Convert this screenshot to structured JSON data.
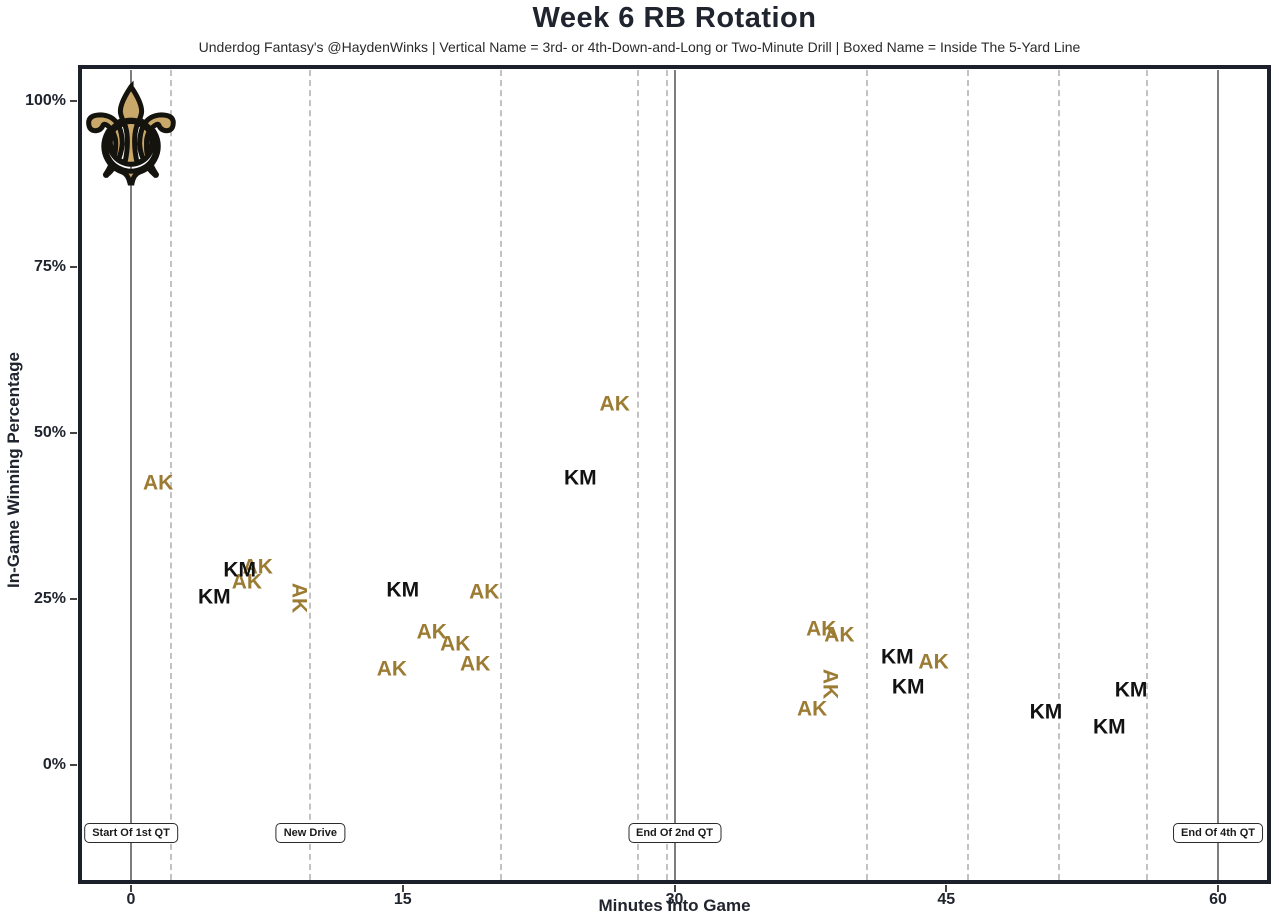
{
  "header": {
    "title": "Week 6 RB Rotation",
    "subtitle": "Underdog Fantasy's @HaydenWinks | Vertical Name = 3rd- or 4th-Down-and-Long or Two-Minute Drill | Boxed Name = Inside The 5-Yard Line"
  },
  "chart_data": {
    "type": "scatter",
    "title": "Week 6 RB Rotation",
    "subtitle": "Underdog Fantasy's @HaydenWinks | Vertical Name = 3rd- or 4th-Down-and-Long or Two-Minute Drill | Boxed Name = Inside The 5-Yard Line",
    "xlabel": "Minutes Into Game",
    "ylabel": "In-Game Winning Percentage",
    "xlim": [
      -2.7,
      62.7
    ],
    "ylim": [
      -17.2,
      104.7
    ],
    "x_ticks": [
      0,
      15,
      30,
      45,
      60
    ],
    "y_ticks": [
      {
        "value": 0,
        "label": "0%"
      },
      {
        "value": 25,
        "label": "25%"
      },
      {
        "value": 50,
        "label": "50%"
      },
      {
        "value": 75,
        "label": "75%"
      },
      {
        "value": 100,
        "label": "100%"
      }
    ],
    "team": "New Orleans Saints",
    "logo_icon": "saints-fleur-de-lis",
    "logo_glyph": "⚜",
    "logo_position": {
      "t": 0,
      "wp": 94.5
    },
    "colors": {
      "AK": "#9c7b33",
      "KM": "#121212",
      "solid_line": "#7d7d7d",
      "dashed_line": "#c2c2c2",
      "panel_border": "#1c202b",
      "title_text": "#20242e",
      "logo_gold": "#c9a86a"
    },
    "series": [
      {
        "name": "AK",
        "color": "#9c7b33",
        "points": [
          {
            "t": 1.5,
            "wp": 42.5
          },
          {
            "t": 6.4,
            "wp": 27.6
          },
          {
            "t": 7.0,
            "wp": 29.8
          },
          {
            "t": 9.3,
            "wp": 25.1,
            "vertical": true
          },
          {
            "t": 14.4,
            "wp": 14.5
          },
          {
            "t": 16.6,
            "wp": 20.0
          },
          {
            "t": 17.9,
            "wp": 18.2
          },
          {
            "t": 19.0,
            "wp": 15.2
          },
          {
            "t": 19.5,
            "wp": 26.0
          },
          {
            "t": 26.7,
            "wp": 54.4
          },
          {
            "t": 37.6,
            "wp": 8.5
          },
          {
            "t": 38.1,
            "wp": 20.5
          },
          {
            "t": 38.6,
            "wp": 12.2,
            "vertical": true
          },
          {
            "t": 39.1,
            "wp": 19.6
          },
          {
            "t": 44.3,
            "wp": 15.5
          }
        ]
      },
      {
        "name": "KM",
        "color": "#121212",
        "points": [
          {
            "t": 4.6,
            "wp": 25.3
          },
          {
            "t": 6.0,
            "wp": 29.4
          },
          {
            "t": 15.0,
            "wp": 26.4
          },
          {
            "t": 24.8,
            "wp": 43.2
          },
          {
            "t": 42.3,
            "wp": 16.3
          },
          {
            "t": 42.9,
            "wp": 11.7
          },
          {
            "t": 50.5,
            "wp": 8.0
          },
          {
            "t": 54.0,
            "wp": 5.7
          },
          {
            "t": 55.2,
            "wp": 11.3
          }
        ]
      }
    ],
    "drive_lines": {
      "solid_t": [
        0,
        30,
        60
      ],
      "dashed_t": [
        2.2,
        9.9,
        20.4,
        28.0,
        29.6,
        40.6,
        46.2,
        51.2,
        56.1
      ]
    },
    "annotations": [
      {
        "label": "Start Of 1st QT",
        "t": 0
      },
      {
        "label": "New Drive",
        "t": 9.9
      },
      {
        "label": "End Of 2nd QT",
        "t": 30
      },
      {
        "label": "End Of 4th QT",
        "t": 60
      }
    ]
  }
}
